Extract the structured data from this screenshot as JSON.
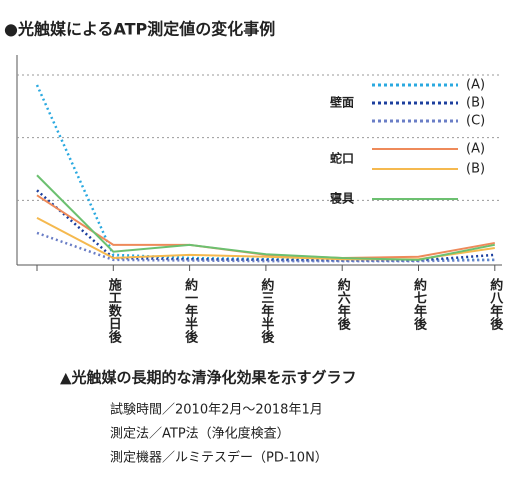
{
  "chart_data": {
    "type": "line",
    "title": "●光触媒によるATP測定値の変化事例",
    "categories": [
      null,
      "施工数日後",
      "約一年半後",
      "約三年半後",
      "約六年後",
      "約七年後",
      "約八年後"
    ],
    "ylim": [
      0,
      3
    ],
    "yticks": [
      1,
      2,
      3
    ],
    "grid": true,
    "groups": [
      {
        "name": "壁面",
        "dashed": true,
        "series": [
          {
            "name": "(A)",
            "color": "#2aa9e0",
            "values": [
              2.84,
              0.13,
              0.08,
              0.06,
              0.05,
              0.05,
              0.05
            ]
          },
          {
            "name": "(B)",
            "color": "#1c3f9e",
            "values": [
              1.16,
              0.08,
              0.06,
              0.05,
              0.04,
              0.04,
              0.13
            ]
          },
          {
            "name": "(C)",
            "color": "#6a7ec6",
            "values": [
              0.48,
              0.05,
              0.04,
              0.03,
              0.03,
              0.03,
              0.05
            ]
          }
        ]
      },
      {
        "name": "蛇口",
        "dashed": false,
        "series": [
          {
            "name": "(A)",
            "color": "#ee8a5a",
            "values": [
              1.08,
              0.29,
              0.29,
              0.13,
              0.08,
              0.1,
              0.32
            ]
          },
          {
            "name": "(B)",
            "color": "#f5b94f",
            "values": [
              0.72,
              0.08,
              0.13,
              0.1,
              0.06,
              0.06,
              0.24
            ]
          }
        ]
      },
      {
        "name": "寝具",
        "dashed": false,
        "series": [
          {
            "name": null,
            "color": "#6cc070",
            "values": [
              1.4,
              0.18,
              0.29,
              0.14,
              0.08,
              0.05,
              0.29
            ]
          }
        ]
      }
    ],
    "caption": "▲光触媒の長期的な清浄化効果を示すグラフ",
    "notes": [
      "試験時間／2010年2月～2018年1月",
      "測定法／ATP法（浄化度検査）",
      "測定機器／ルミテスデー（PD-10N）"
    ]
  }
}
